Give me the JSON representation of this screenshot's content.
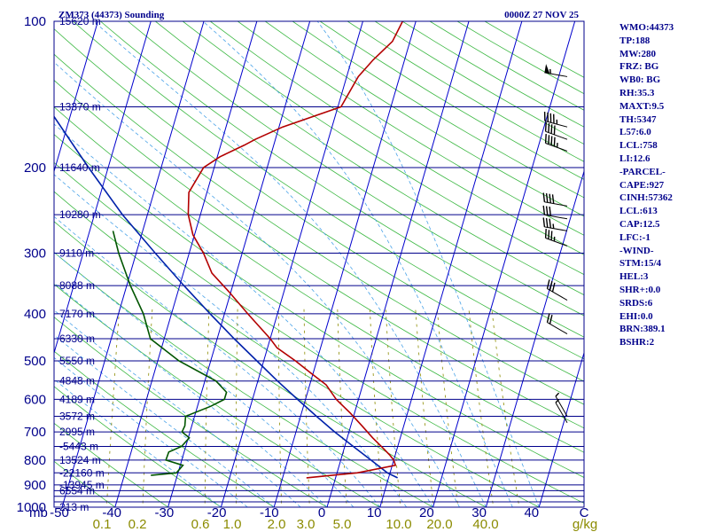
{
  "header": {
    "title_left": "ZM373 (44373) Sounding",
    "title_right": "0000Z 27 NOV 25"
  },
  "chart_data": {
    "type": "skew-t",
    "title": "ZM373 (44373) Sounding",
    "valid_time": "0000Z 27 NOV 25",
    "y_label": "mb",
    "x_unit": "C",
    "mixing_ratio_unit": "g/kg",
    "pressure_range": [
      1000,
      100
    ],
    "temperature_range": [
      -50,
      50
    ],
    "pressure_ticks": [
      {
        "p": 100,
        "label": "100"
      },
      {
        "p": 200,
        "label": "200"
      },
      {
        "p": 300,
        "label": "300"
      },
      {
        "p": 400,
        "label": "400"
      },
      {
        "p": 500,
        "label": "500"
      },
      {
        "p": 600,
        "label": "600"
      },
      {
        "p": 700,
        "label": "700"
      },
      {
        "p": 800,
        "label": "800"
      },
      {
        "p": 900,
        "label": "900"
      },
      {
        "p": 1000,
        "label": "1000"
      }
    ],
    "isobars": [
      100,
      150,
      200,
      250,
      300,
      350,
      400,
      450,
      500,
      550,
      600,
      650,
      700,
      750,
      800,
      850,
      900,
      925,
      950,
      975,
      1000
    ],
    "height_labels": [
      {
        "p": 100,
        "label": "15620 m"
      },
      {
        "p": 150,
        "label": "13370 m"
      },
      {
        "p": 200,
        "label": "11640 m"
      },
      {
        "p": 250,
        "label": "10280 m"
      },
      {
        "p": 300,
        "label": "9110 m"
      },
      {
        "p": 350,
        "label": "8088 m"
      },
      {
        "p": 400,
        "label": "7170 m"
      },
      {
        "p": 450,
        "label": "6330 m"
      },
      {
        "p": 500,
        "label": "5550 m"
      },
      {
        "p": 550,
        "label": "4848 m"
      },
      {
        "p": 600,
        "label": "4189 m"
      },
      {
        "p": 650,
        "label": "3572 m"
      },
      {
        "p": 700,
        "label": "2995 m"
      },
      {
        "p": 750,
        "label": "-5443 m"
      },
      {
        "p": 800,
        "label": "13524 m"
      },
      {
        "p": 850,
        "label": "-22160 m"
      },
      {
        "p": 900,
        "label": "-13945 m"
      },
      {
        "p": 925,
        "label": "6554 m"
      },
      {
        "p": 1000,
        "label": "213 m"
      }
    ],
    "temp_ticks": [
      "-50",
      "-40",
      "-30",
      "-20",
      "-10",
      "0",
      "10",
      "20",
      "30",
      "40",
      "C"
    ],
    "mixing_ratio_labels": [
      "0.1",
      "0.2",
      "0.6",
      "1.0",
      "2.0",
      "3.0",
      "5.0",
      "10.0",
      "20.0",
      "40.0",
      "g/kg"
    ],
    "temperature": [
      [
        100,
        -12.5
      ],
      [
        110,
        -13.3
      ],
      [
        120,
        -15.9
      ],
      [
        130,
        -17.8
      ],
      [
        150,
        -19.4
      ],
      [
        165,
        -29.3
      ],
      [
        175,
        -33.8
      ],
      [
        180,
        -35.6
      ],
      [
        190,
        -39.5
      ],
      [
        200,
        -42.0
      ],
      [
        225,
        -43.4
      ],
      [
        250,
        -42.3
      ],
      [
        275,
        -40.3
      ],
      [
        300,
        -37.3
      ],
      [
        330,
        -34.6
      ],
      [
        360,
        -30.4
      ],
      [
        400,
        -25.6
      ],
      [
        450,
        -20.0
      ],
      [
        470,
        -18.2
      ],
      [
        500,
        -14.0
      ],
      [
        530,
        -10.4
      ],
      [
        560,
        -6.9
      ],
      [
        600,
        -4.2
      ],
      [
        640,
        -0.8
      ],
      [
        680,
        2.1
      ],
      [
        720,
        4.8
      ],
      [
        760,
        7.6
      ],
      [
        780,
        8.9
      ],
      [
        800,
        10.0
      ],
      [
        820,
        10.6
      ],
      [
        850,
        3.8
      ],
      [
        870,
        -5.5
      ]
    ],
    "dewpoint": [
      [
        270,
        -55.6
      ],
      [
        300,
        -53.3
      ],
      [
        350,
        -49.3
      ],
      [
        400,
        -45.3
      ],
      [
        450,
        -42.6
      ],
      [
        500,
        -36.0
      ],
      [
        550,
        -27.9
      ],
      [
        580,
        -25.3
      ],
      [
        600,
        -25.3
      ],
      [
        620,
        -27.5
      ],
      [
        650,
        -31.7
      ],
      [
        680,
        -31.3
      ],
      [
        700,
        -31.5
      ],
      [
        720,
        -29.8
      ],
      [
        750,
        -30.8
      ],
      [
        770,
        -32.9
      ],
      [
        800,
        -33.0
      ],
      [
        820,
        -29.5
      ],
      [
        850,
        -30.3
      ],
      [
        860,
        -35.0
      ]
    ],
    "parcel": [
      [
        870,
        11.7
      ],
      [
        850,
        9.5
      ],
      [
        800,
        5.7
      ],
      [
        750,
        1.6
      ],
      [
        700,
        -2.7
      ],
      [
        650,
        -7.0
      ],
      [
        600,
        -11.5
      ],
      [
        550,
        -16.3
      ],
      [
        500,
        -21.3
      ],
      [
        450,
        -26.8
      ],
      [
        400,
        -32.7
      ],
      [
        350,
        -39.2
      ],
      [
        300,
        -46.4
      ],
      [
        250,
        -54.7
      ],
      [
        200,
        -63.7
      ],
      [
        150,
        -74.8
      ],
      [
        120,
        -81.8
      ],
      [
        110,
        -84.1
      ]
    ],
    "wind_barbs": [
      {
        "p": 130,
        "dir": 280,
        "speed": 55
      },
      {
        "p": 165,
        "dir": 285,
        "speed": 45
      },
      {
        "p": 175,
        "dir": 290,
        "speed": 40
      },
      {
        "p": 185,
        "dir": 290,
        "speed": 45
      },
      {
        "p": 240,
        "dir": 280,
        "speed": 40
      },
      {
        "p": 255,
        "dir": 280,
        "speed": 30
      },
      {
        "p": 270,
        "dir": 280,
        "speed": 35
      },
      {
        "p": 290,
        "dir": 290,
        "speed": 35
      },
      {
        "p": 375,
        "dir": 300,
        "speed": 30
      },
      {
        "p": 440,
        "dir": 300,
        "speed": 20
      },
      {
        "p": 650,
        "dir": 330,
        "speed": 5
      },
      {
        "p": 670,
        "dir": 330,
        "speed": 5
      }
    ]
  },
  "indices": [
    "WMO:44373",
    "TP:188",
    "MW:280",
    "FRZ: BG",
    "WB0: BG",
    "RH:35.3",
    "MAXT:9.5",
    "TH:5347",
    "L57:6.0",
    "LCL:758",
    "LI:12.6",
    "-PARCEL-",
    "CAPE:927",
    "CINH:57362",
    "LCL:613",
    "CAP:12.5",
    "LFC:-1",
    "-WIND-",
    "STM:15/4",
    "HEL:3",
    "SHR+:0.0",
    "SRDS:6",
    "EHI:0.0",
    "BRN:389.1",
    "BSHR:2"
  ],
  "colors": {
    "axis": "#00008b",
    "isobar": "#00008b",
    "isotherm": "#0000cd",
    "dry_adiabat": "#3cb843",
    "moist_adiabat": "#4aa3e8",
    "mixing_ratio": "#8b8b00",
    "temperature": "#b30000",
    "dewpoint": "#005500",
    "parcel": "#0022aa",
    "mixing_label": "#8b8b00",
    "barb": "#000000"
  }
}
